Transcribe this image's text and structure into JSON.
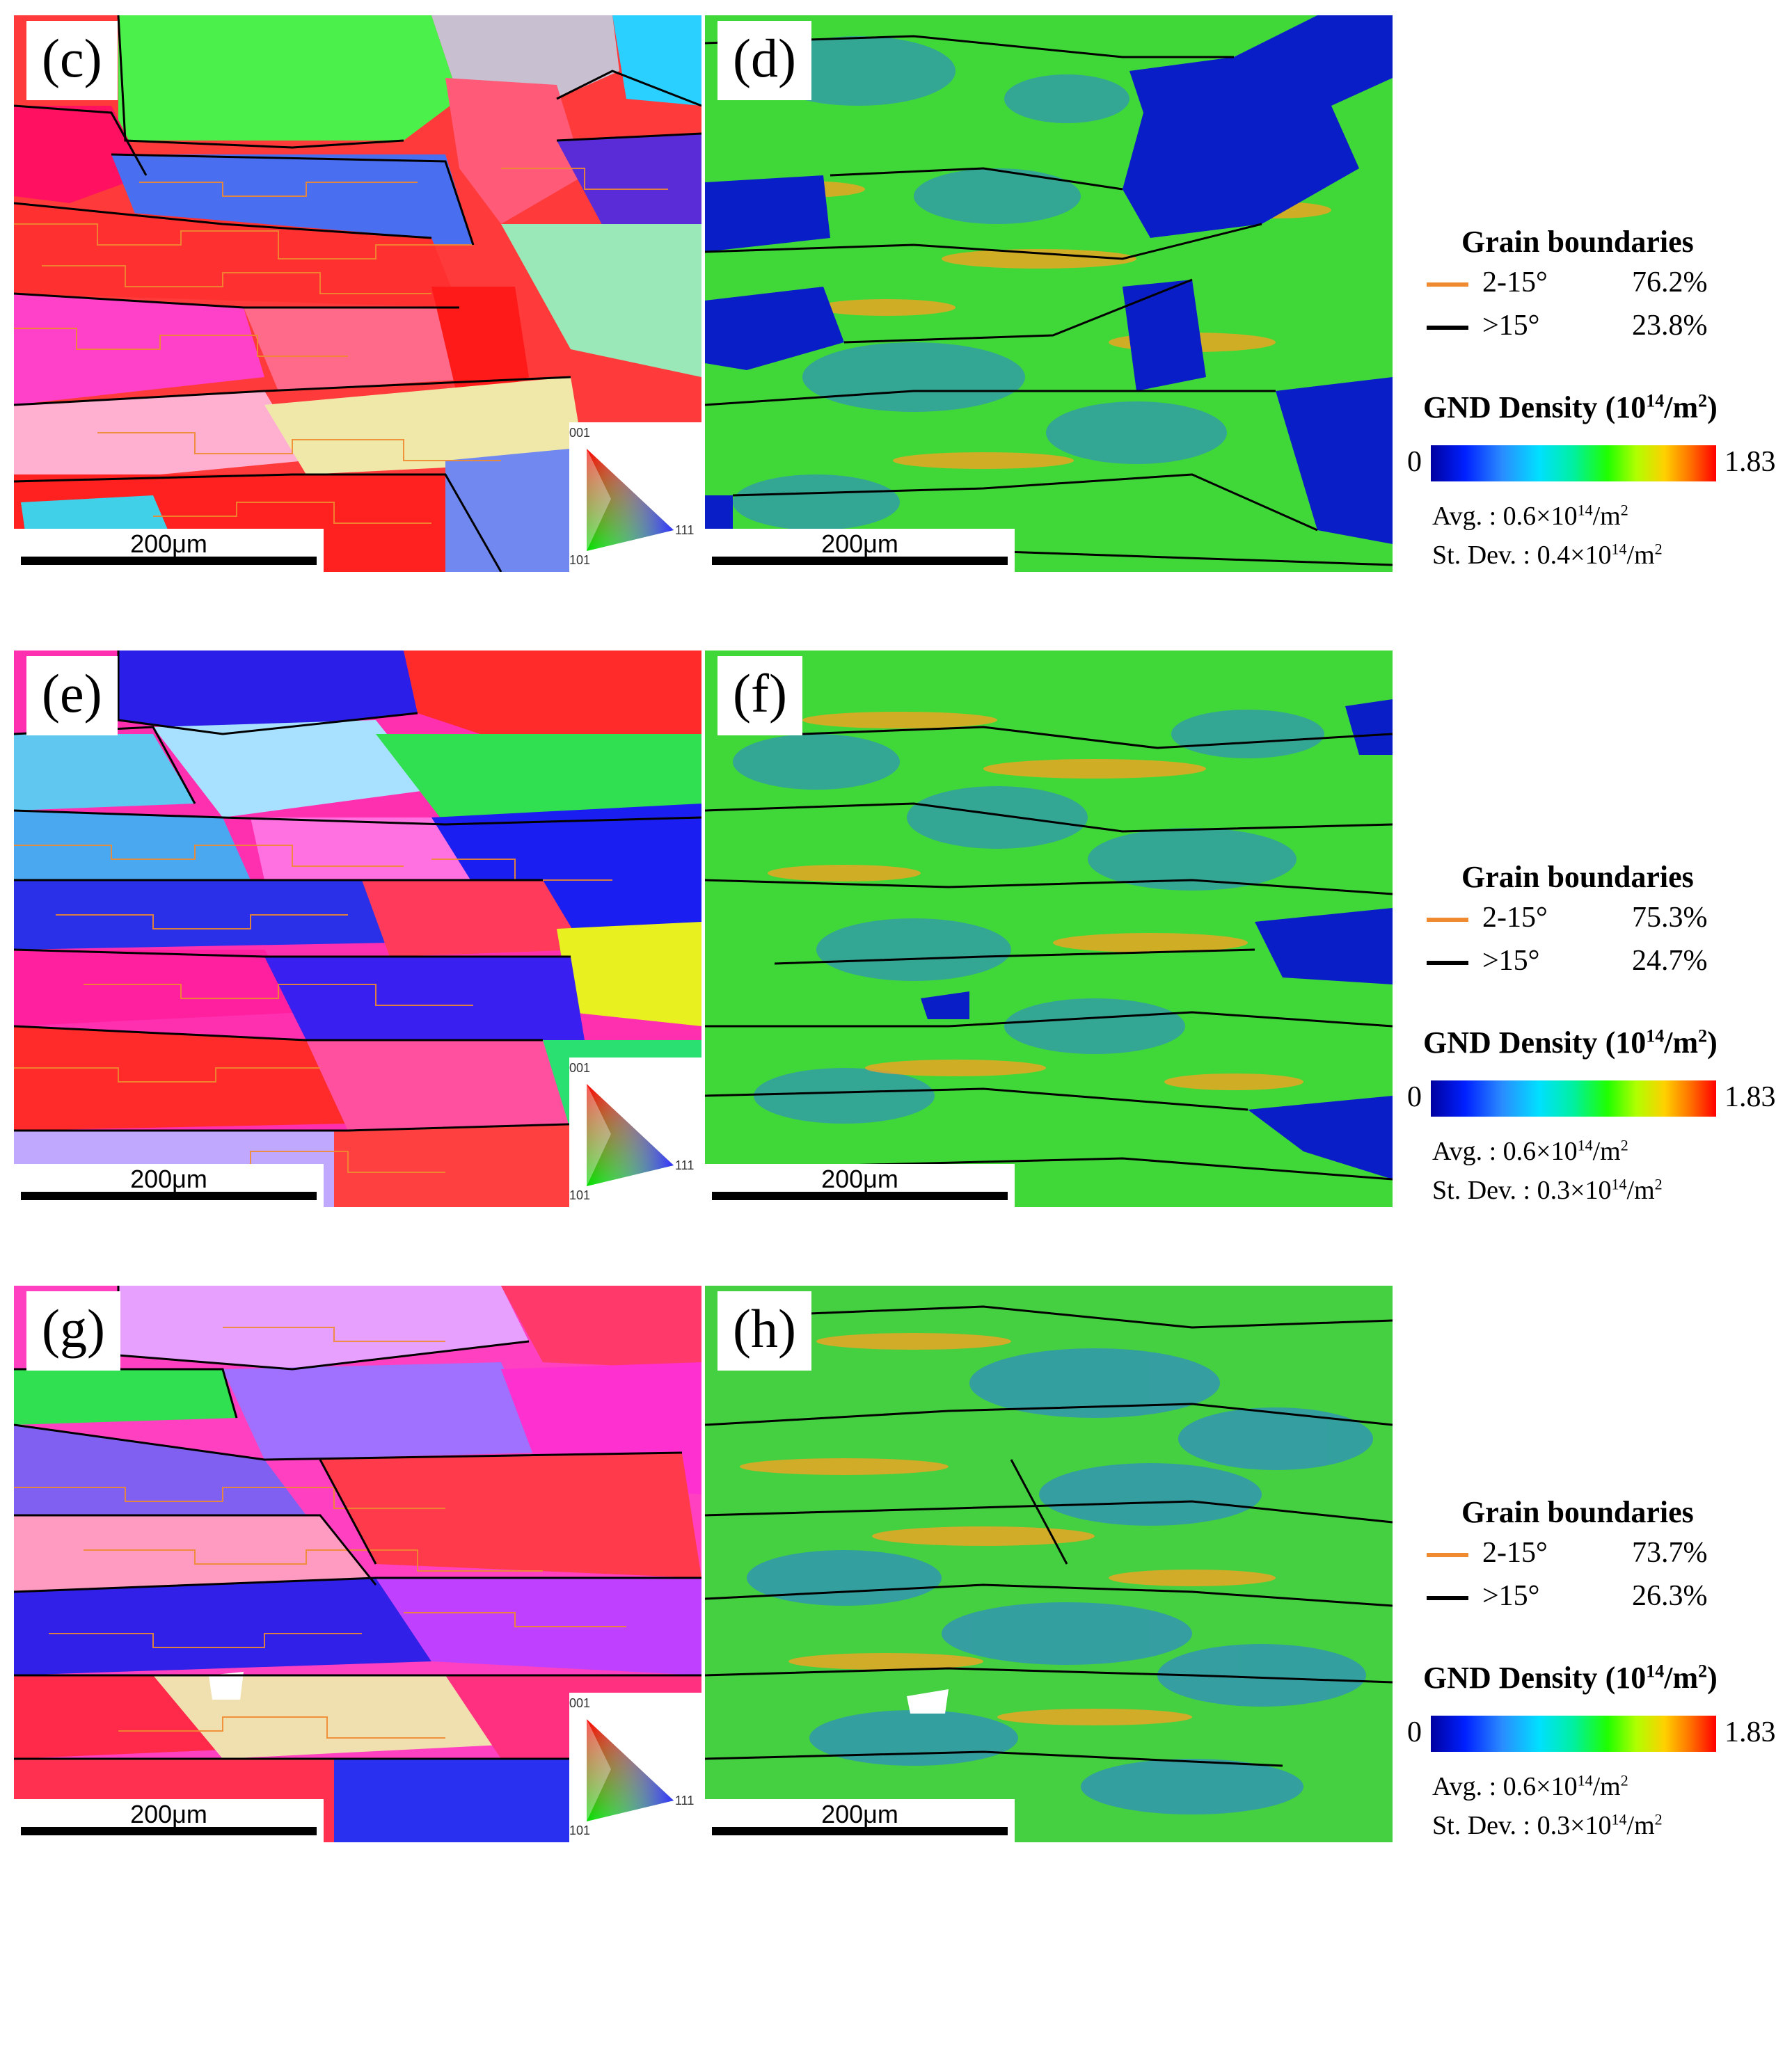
{
  "scalebar_label": "200μm",
  "ipf_key": {
    "top": "001",
    "bottom_left": "101",
    "right": "111"
  },
  "rows": [
    {
      "left_label": "(c)",
      "right_label": "(d)",
      "legend": {
        "gb_title": "Grain boundaries",
        "low_angle_label": "2-15°",
        "low_angle_pct": "76.2%",
        "high_angle_label": ">15°",
        "high_angle_pct": "23.8%",
        "gnd_title": "GND Density",
        "gnd_unit_open": "(10",
        "gnd_unit_exp": "14",
        "gnd_unit_mid": "/m",
        "gnd_unit_exp2": "2",
        "gnd_unit_close": ")",
        "scale_min": "0",
        "scale_max": "1.83",
        "avg_prefix": "Avg. : 0.6×10",
        "avg_exp": "14",
        "avg_suffix": "/m",
        "avg_exp2": "2",
        "sd_prefix": "St. Dev. : 0.4×10",
        "sd_exp": "14",
        "sd_suffix": "/m",
        "sd_exp2": "2"
      }
    },
    {
      "left_label": "(e)",
      "right_label": "(f)",
      "legend": {
        "gb_title": "Grain boundaries",
        "low_angle_label": "2-15°",
        "low_angle_pct": "75.3%",
        "high_angle_label": ">15°",
        "high_angle_pct": "24.7%",
        "gnd_title": "GND Density",
        "gnd_unit_open": "(10",
        "gnd_unit_exp": "14",
        "gnd_unit_mid": "/m",
        "gnd_unit_exp2": "2",
        "gnd_unit_close": ")",
        "scale_min": "0",
        "scale_max": "1.83",
        "avg_prefix": "Avg. : 0.6×10",
        "avg_exp": "14",
        "avg_suffix": "/m",
        "avg_exp2": "2",
        "sd_prefix": "St. Dev. : 0.3×10",
        "sd_exp": "14",
        "sd_suffix": "/m",
        "sd_exp2": "2"
      }
    },
    {
      "left_label": "(g)",
      "right_label": "(h)",
      "legend": {
        "gb_title": "Grain boundaries",
        "low_angle_label": "2-15°",
        "low_angle_pct": "73.7%",
        "high_angle_label": ">15°",
        "high_angle_pct": "26.3%",
        "gnd_title": "GND Density",
        "gnd_unit_open": "(10",
        "gnd_unit_exp": "14",
        "gnd_unit_mid": "/m",
        "gnd_unit_exp2": "2",
        "gnd_unit_close": ")",
        "scale_min": "0",
        "scale_max": "1.83",
        "avg_prefix": "Avg. : 0.6×10",
        "avg_exp": "14",
        "avg_suffix": "/m",
        "avg_exp2": "2",
        "sd_prefix": "St. Dev. : 0.3×10",
        "sd_exp": "14",
        "sd_suffix": "/m",
        "sd_exp2": "2"
      }
    }
  ],
  "colors": {
    "low_angle_boundary": "#f08a30",
    "high_angle_boundary": "#000000"
  }
}
